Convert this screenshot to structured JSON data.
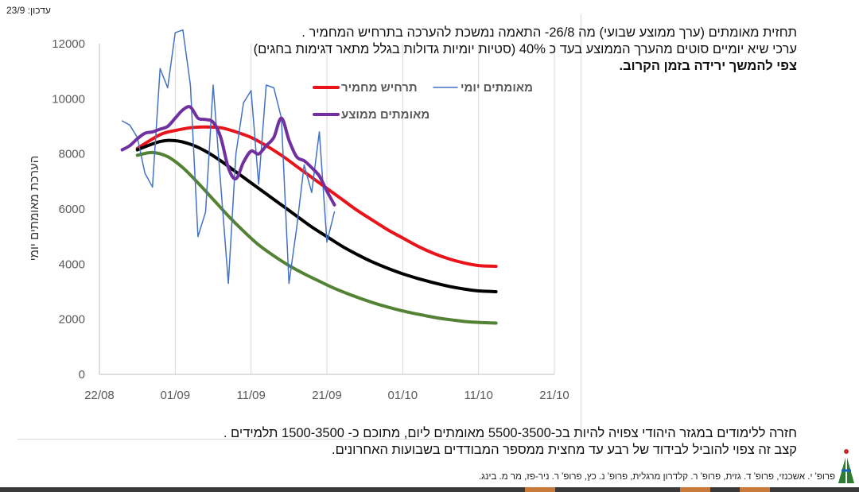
{
  "update_label": "עדכון: 23/9",
  "header": {
    "line1": "תחזית מאומתים (ערך ממוצע שבועי) מה 26/8- התאמה נמשכת להערכה בתרחיש המחמיר .",
    "line2": "ערכי שיא יומיים סוטים מהערך הממוצע בעד כ 40% (סטיות יומיות  גדולות בגלל מתאר דגימות בחגים)",
    "line3": "צפי להמשך ירידה בזמן הקרוב."
  },
  "footer": {
    "line1": "חזרה ללימודים במגזר היהודי צפויה להיות בכ-5500-3500 מאומתים ליום, מתוכם כ- 1500-3500 תלמידים .",
    "line2": "קצב זה צפוי להוביל לבידוד של רבע עד מחצית ממספר המבודדים בשבועות האחרונים.",
    "credits": "פרופ' י. אשכנזי, פרופ' ד. גזית, פרופ' ר. קלדרון מרגלית, פרופ' נ. כץ, פרופ' ר. ניר-פז, מר מ. בינג."
  },
  "colors": {
    "red": "#e8141a",
    "black": "#000000",
    "green": "#548235",
    "blue": "#4472c4",
    "purple": "#7030a0"
  },
  "chart_data": {
    "type": "line",
    "ylabel": "הערכת מאומתים יומי",
    "xlabel": "",
    "ylim": [
      0,
      12000
    ],
    "yticks": [
      0,
      2000,
      4000,
      6000,
      8000,
      10000,
      12000
    ],
    "xlim": [
      0,
      60
    ],
    "xtick_positions": [
      0,
      10,
      20,
      30,
      40,
      50,
      60
    ],
    "xtick_labels": [
      "22/08",
      "01/09",
      "11/09",
      "21/09",
      "01/10",
      "11/10",
      "21/10"
    ],
    "grid": "vertical",
    "legend_position": "top",
    "series": [
      {
        "name": "תרחיש מחמיר",
        "color_key": "red",
        "width": 4,
        "x": [
          5,
          8,
          10,
          12,
          14,
          16,
          18,
          20,
          22,
          24,
          26,
          28,
          30,
          32,
          34,
          36,
          38,
          40,
          42,
          44,
          46,
          48,
          50,
          52.3
        ],
        "y": [
          8200,
          8700,
          8850,
          8950,
          8980,
          8950,
          8800,
          8600,
          8300,
          7950,
          7550,
          7150,
          6750,
          6350,
          5950,
          5600,
          5250,
          4950,
          4650,
          4400,
          4200,
          4050,
          3950,
          3920
        ]
      },
      {
        "name": "מאומתים יומי",
        "color_key": "blue",
        "width": 1.5,
        "x": [
          3,
          4,
          5,
          6,
          7,
          8,
          9,
          10,
          11,
          12,
          13,
          14,
          15,
          16,
          17,
          18,
          19,
          20,
          21,
          22,
          23,
          24,
          25,
          26,
          27,
          28,
          29,
          30,
          31
        ],
        "y": [
          9200,
          9050,
          8600,
          7300,
          6800,
          11100,
          10400,
          12400,
          12500,
          10500,
          5000,
          5900,
          10500,
          6900,
          3300,
          8000,
          9850,
          10300,
          6900,
          10500,
          10400,
          9300,
          3300,
          5300,
          7600,
          6600,
          8800,
          4800,
          5900
        ]
      },
      {
        "name": "",
        "color_key": "black",
        "width": 4,
        "x": [
          5,
          8,
          10,
          12,
          14,
          16,
          18,
          20,
          22,
          24,
          26,
          28,
          30,
          32,
          34,
          36,
          38,
          40,
          42,
          44,
          46,
          48,
          50,
          52.3
        ],
        "y": [
          8150,
          8450,
          8480,
          8350,
          8100,
          7750,
          7350,
          6950,
          6550,
          6150,
          5750,
          5350,
          5000,
          4650,
          4350,
          4080,
          3850,
          3650,
          3480,
          3330,
          3200,
          3100,
          3030,
          3000
        ]
      },
      {
        "name": "",
        "color_key": "green",
        "width": 4,
        "x": [
          5,
          7,
          9,
          11,
          13,
          15,
          17,
          19,
          21,
          23,
          25,
          27,
          29,
          31,
          33,
          35,
          37,
          39,
          41,
          43,
          45,
          47,
          49,
          52.3
        ],
        "y": [
          7950,
          8050,
          7900,
          7500,
          6950,
          6350,
          5750,
          5200,
          4700,
          4300,
          3950,
          3650,
          3380,
          3120,
          2900,
          2700,
          2520,
          2370,
          2240,
          2130,
          2030,
          1960,
          1900,
          1860
        ]
      },
      {
        "name": "מאומתים ממוצע",
        "color_key": "purple",
        "width": 4,
        "x": [
          3,
          4,
          5,
          6,
          7,
          8,
          9,
          10,
          11,
          12,
          13,
          14,
          15,
          16,
          17,
          18,
          19,
          20,
          21,
          22,
          23,
          24,
          25,
          26,
          27,
          28,
          29,
          30,
          31
        ],
        "y": [
          8150,
          8300,
          8550,
          8750,
          8800,
          8900,
          9000,
          9300,
          9600,
          9700,
          9300,
          9250,
          9150,
          8600,
          7500,
          7100,
          7700,
          8100,
          8000,
          8300,
          8600,
          9300,
          8500,
          7900,
          7750,
          7500,
          7200,
          6650,
          6150
        ]
      }
    ]
  }
}
